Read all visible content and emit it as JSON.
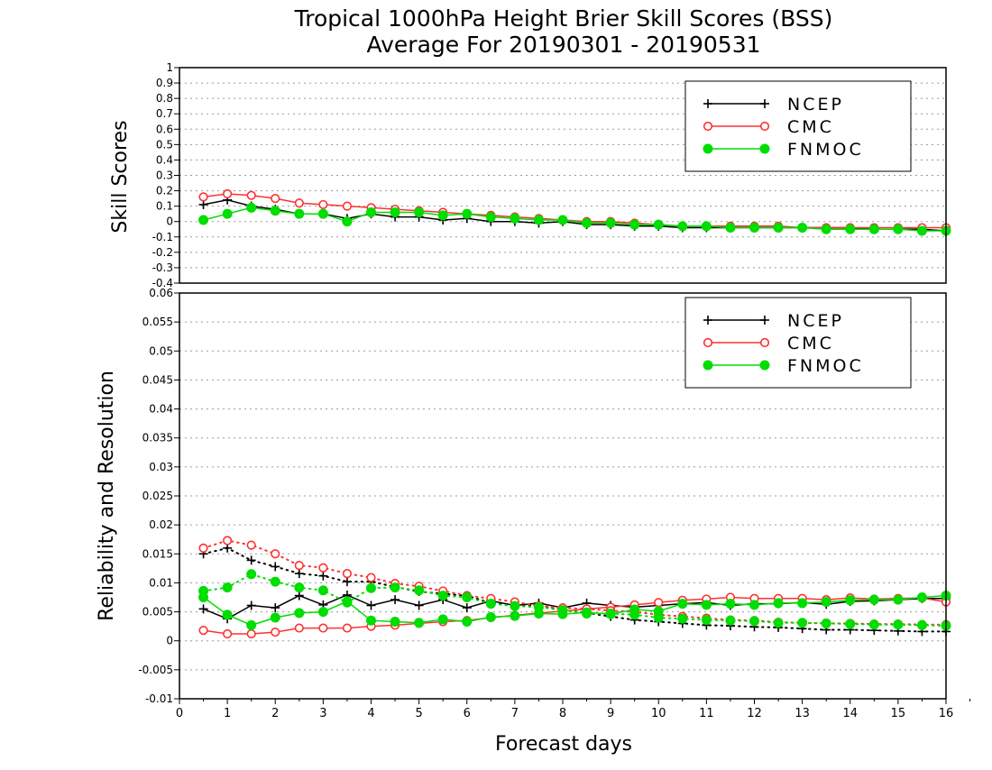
{
  "title": {
    "line1": "Tropical 1000hPa Height Brier Skill Scores (BSS)",
    "line2": "Average For 20190301 - 20190531"
  },
  "colors": {
    "NCEP": "#000000",
    "CMC": "#ff3030",
    "FNMOC": "#00dd00",
    "grid": "#9a9a9a"
  },
  "legend_entries": [
    "NCEP",
    "CMC",
    "FNMOC"
  ],
  "chart_data": [
    {
      "type": "line",
      "ylabel": "Skill Scores",
      "ylim": [
        -0.4,
        1
      ],
      "yticks": [
        -0.4,
        -0.3,
        -0.2,
        -0.1,
        0,
        0.1,
        0.2,
        0.3,
        0.4,
        0.5,
        0.6,
        0.7,
        0.8,
        0.9,
        1
      ],
      "ytick_labels": [
        "-0.4",
        "-0.3",
        "-0.2",
        "-0.1",
        "0",
        "0.1",
        "0.2",
        "0.3",
        "0.4",
        "0.5",
        "0.6",
        "0.7",
        "0.8",
        "0.9",
        "1"
      ],
      "xlim": [
        0,
        16
      ],
      "grid": true,
      "legend_position": "top-right",
      "x": [
        0.5,
        1,
        1.5,
        2,
        2.5,
        3,
        3.5,
        4,
        4.5,
        5,
        5.5,
        6,
        6.5,
        7,
        7.5,
        8,
        8.5,
        9,
        9.5,
        10,
        10.5,
        11,
        11.5,
        12,
        12.5,
        13,
        13.5,
        14,
        14.5,
        15,
        15.5,
        16
      ],
      "series": [
        {
          "name": "NCEP",
          "marker": "plus",
          "values": [
            0.11,
            0.14,
            0.1,
            0.08,
            0.05,
            0.05,
            0.02,
            0.05,
            0.03,
            0.03,
            0.01,
            0.02,
            0.0,
            0.0,
            -0.01,
            0.0,
            -0.02,
            -0.02,
            -0.03,
            -0.03,
            -0.04,
            -0.04,
            -0.04,
            -0.04,
            -0.04,
            -0.04,
            -0.04,
            -0.04,
            -0.05,
            -0.05,
            -0.05,
            -0.06
          ]
        },
        {
          "name": "CMC",
          "marker": "open-circle",
          "values": [
            0.16,
            0.18,
            0.17,
            0.15,
            0.12,
            0.11,
            0.1,
            0.09,
            0.08,
            0.07,
            0.06,
            0.05,
            0.04,
            0.03,
            0.02,
            0.01,
            0.0,
            0.0,
            -0.01,
            -0.02,
            -0.03,
            -0.03,
            -0.03,
            -0.03,
            -0.03,
            -0.04,
            -0.04,
            -0.04,
            -0.04,
            -0.04,
            -0.04,
            -0.04
          ]
        },
        {
          "name": "FNMOC",
          "marker": "filled-circle",
          "values": [
            0.01,
            0.05,
            0.09,
            0.07,
            0.05,
            0.05,
            0.0,
            0.06,
            0.06,
            0.06,
            0.04,
            0.05,
            0.03,
            0.02,
            0.01,
            0.01,
            -0.01,
            -0.01,
            -0.02,
            -0.02,
            -0.03,
            -0.03,
            -0.04,
            -0.04,
            -0.04,
            -0.04,
            -0.05,
            -0.05,
            -0.05,
            -0.05,
            -0.06,
            -0.06
          ]
        }
      ]
    },
    {
      "type": "line",
      "ylabel": "Reliability and Resolution",
      "ylim": [
        -0.01,
        0.06
      ],
      "yticks": [
        -0.01,
        -0.005,
        0,
        0.005,
        0.01,
        0.015,
        0.02,
        0.025,
        0.03,
        0.035,
        0.04,
        0.045,
        0.05,
        0.055,
        0.06
      ],
      "ytick_labels": [
        "-0.01",
        "-0.005",
        "0",
        "0.005",
        "0.01",
        "0.015",
        "0.02",
        "0.025",
        "0.03",
        "0.035",
        "0.04",
        "0.045",
        "0.05",
        "0.055",
        "0.06"
      ],
      "xlim": [
        0,
        16
      ],
      "xticks": [
        0,
        1,
        2,
        3,
        4,
        5,
        6,
        7,
        8,
        9,
        10,
        11,
        12,
        13,
        14,
        15,
        16
      ],
      "xtick_labels": [
        "0",
        "1",
        "2",
        "3",
        "4",
        "5",
        "6",
        "7",
        "8",
        "9",
        "10",
        "11",
        "12",
        "13",
        "14",
        "15",
        "16"
      ],
      "xlabel": "Forecast days",
      "grid": true,
      "legend_position": "top-right",
      "x": [
        0.5,
        1,
        1.5,
        2,
        2.5,
        3,
        3.5,
        4,
        4.5,
        5,
        5.5,
        6,
        6.5,
        7,
        7.5,
        8,
        8.5,
        9,
        9.5,
        10,
        10.5,
        11,
        11.5,
        12,
        12.5,
        13,
        13.5,
        14,
        14.5,
        15,
        15.5,
        16
      ],
      "series": [
        {
          "name": "NCEP",
          "marker": "plus",
          "style": "solid",
          "values": [
            0.0055,
            0.0038,
            0.0061,
            0.0057,
            0.0078,
            0.0062,
            0.0079,
            0.0061,
            0.0071,
            0.0061,
            0.0071,
            0.0057,
            0.0069,
            0.0061,
            0.0065,
            0.0057,
            0.0065,
            0.0061,
            0.0058,
            0.0061,
            0.0064,
            0.0066,
            0.0061,
            0.0064,
            0.0064,
            0.0066,
            0.0063,
            0.0068,
            0.0069,
            0.0071,
            0.0073,
            0.0073
          ]
        },
        {
          "name": "NCEP",
          "marker": "plus",
          "style": "dotted",
          "values": [
            0.015,
            0.016,
            0.0139,
            0.0128,
            0.0116,
            0.0112,
            0.0102,
            0.0102,
            0.0093,
            0.0085,
            0.0081,
            0.0078,
            0.0065,
            0.0062,
            0.0061,
            0.0053,
            0.0048,
            0.0042,
            0.0036,
            0.0033,
            0.003,
            0.0027,
            0.0026,
            0.0024,
            0.0023,
            0.0021,
            0.0019,
            0.0019,
            0.0018,
            0.0017,
            0.0016,
            0.0016
          ]
        },
        {
          "name": "CMC",
          "marker": "open-circle",
          "style": "solid",
          "values": [
            0.0018,
            0.0012,
            0.0012,
            0.0015,
            0.0022,
            0.0022,
            0.0022,
            0.0025,
            0.0027,
            0.003,
            0.0033,
            0.0035,
            0.004,
            0.0044,
            0.0048,
            0.0051,
            0.0055,
            0.0058,
            0.0062,
            0.0066,
            0.007,
            0.0072,
            0.0075,
            0.0073,
            0.0073,
            0.0073,
            0.0071,
            0.0074,
            0.0072,
            0.0073,
            0.0074,
            0.0067
          ]
        },
        {
          "name": "CMC",
          "marker": "open-circle",
          "style": "dotted",
          "values": [
            0.016,
            0.0173,
            0.0165,
            0.015,
            0.013,
            0.0126,
            0.0116,
            0.0109,
            0.0099,
            0.0094,
            0.0086,
            0.0078,
            0.0073,
            0.0067,
            0.006,
            0.0057,
            0.0055,
            0.0052,
            0.005,
            0.0045,
            0.0042,
            0.0039,
            0.0036,
            0.0035,
            0.0032,
            0.0031,
            0.003,
            0.003,
            0.0029,
            0.0029,
            0.0028,
            0.0028
          ]
        },
        {
          "name": "FNMOC",
          "marker": "filled-circle",
          "style": "solid",
          "values": [
            0.0075,
            0.0045,
            0.0027,
            0.004,
            0.0048,
            0.005,
            0.0068,
            0.0035,
            0.0033,
            0.0031,
            0.0037,
            0.0033,
            0.0041,
            0.0043,
            0.0047,
            0.0046,
            0.0049,
            0.0046,
            0.0054,
            0.0051,
            0.0064,
            0.0062,
            0.0064,
            0.0062,
            0.0065,
            0.0065,
            0.0067,
            0.007,
            0.0071,
            0.0071,
            0.0075,
            0.0078
          ]
        },
        {
          "name": "FNMOC",
          "marker": "filled-circle",
          "style": "dotted",
          "values": [
            0.0086,
            0.0092,
            0.0115,
            0.0102,
            0.0092,
            0.0087,
            0.0066,
            0.0091,
            0.0092,
            0.0087,
            0.0078,
            0.0075,
            0.0064,
            0.006,
            0.0058,
            0.0053,
            0.0047,
            0.0047,
            0.0045,
            0.004,
            0.0038,
            0.0036,
            0.0035,
            0.0034,
            0.0031,
            0.0031,
            0.003,
            0.0029,
            0.0028,
            0.0028,
            0.0027,
            0.0026
          ]
        }
      ]
    }
  ]
}
